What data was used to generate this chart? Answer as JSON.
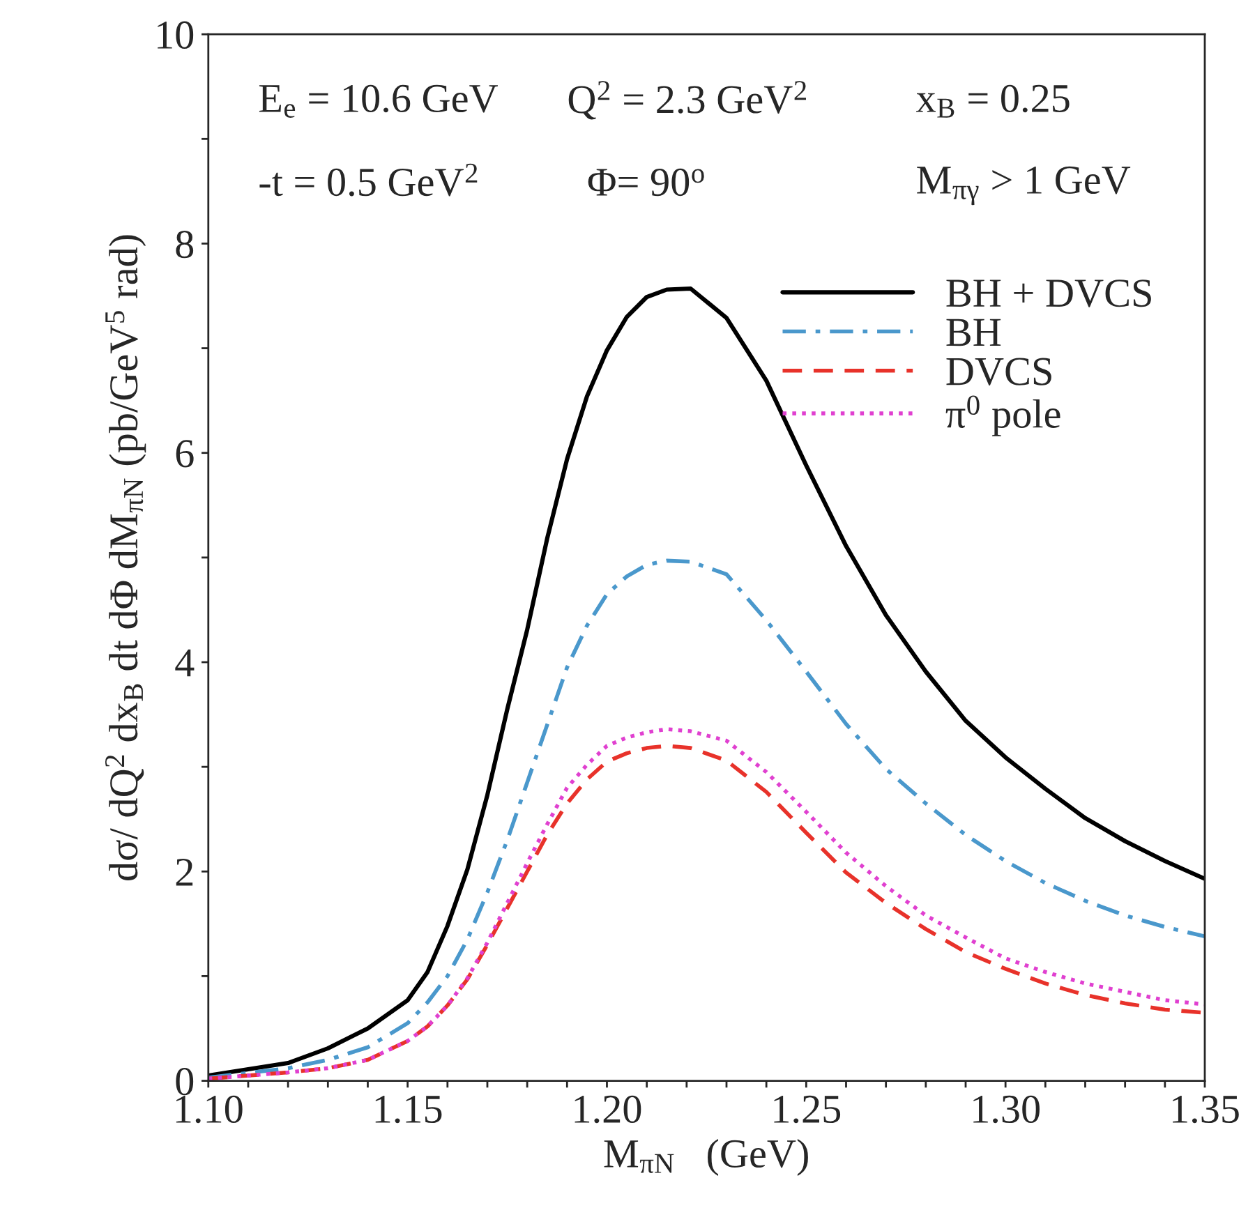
{
  "chart_data": {
    "type": "line",
    "xlabel": "M$_{πN}$   (GeV)",
    "ylabel": "dσ/ dQ$^{2}$ dx$_{B}$ dt dΦ dM$_{πN}$ (pb/GeV$^{5}$ rad)",
    "annotations": [
      "E$_{e}$ = 10.6 GeV",
      "Q$^{2}$ = 2.3 GeV$^{2}$",
      "x$_{B}$ = 0.25",
      "-t = 0.5 GeV$^{2}$",
      "Φ= 90$^{o}$",
      "M$_{πγ}$ > 1 GeV"
    ],
    "x": [
      1.1,
      1.12,
      1.13,
      1.14,
      1.15,
      1.155,
      1.16,
      1.165,
      1.17,
      1.175,
      1.18,
      1.185,
      1.19,
      1.195,
      1.2,
      1.205,
      1.21,
      1.215,
      1.221,
      1.23,
      1.24,
      1.25,
      1.26,
      1.27,
      1.28,
      1.29,
      1.3,
      1.31,
      1.32,
      1.33,
      1.34,
      1.35
    ],
    "series": [
      {
        "name": "BH + DVCS",
        "color": "#000000",
        "line_style": "solid",
        "values": [
          0.05,
          0.17,
          0.31,
          0.5,
          0.77,
          1.04,
          1.48,
          2.02,
          2.73,
          3.55,
          4.31,
          5.18,
          5.94,
          6.54,
          6.98,
          7.3,
          7.49,
          7.56,
          7.57,
          7.29,
          6.69,
          5.88,
          5.11,
          4.45,
          3.91,
          3.44,
          3.09,
          2.79,
          2.51,
          2.29,
          2.1,
          1.93
        ]
      },
      {
        "name": "BH",
        "color": "#4a98cc",
        "line_style": "dashdot",
        "values": [
          0.03,
          0.12,
          0.2,
          0.32,
          0.55,
          0.75,
          1.0,
          1.35,
          1.8,
          2.3,
          2.85,
          3.4,
          3.95,
          4.35,
          4.65,
          4.82,
          4.93,
          4.97,
          4.96,
          4.84,
          4.4,
          3.91,
          3.41,
          2.98,
          2.65,
          2.35,
          2.1,
          1.89,
          1.72,
          1.58,
          1.47,
          1.38
        ]
      },
      {
        "name": "DVCS",
        "color": "#e8322a",
        "line_style": "dashed",
        "values": [
          0.02,
          0.08,
          0.12,
          0.2,
          0.38,
          0.52,
          0.72,
          0.97,
          1.3,
          1.65,
          2.0,
          2.35,
          2.65,
          2.88,
          3.05,
          3.13,
          3.18,
          3.2,
          3.18,
          3.06,
          2.76,
          2.37,
          1.99,
          1.7,
          1.45,
          1.23,
          1.07,
          0.93,
          0.82,
          0.74,
          0.68,
          0.65
        ]
      },
      {
        "name": "π$^{0}$ pole",
        "color": "#e040d0",
        "line_style": "dotted",
        "values": [
          0.02,
          0.08,
          0.12,
          0.2,
          0.38,
          0.52,
          0.72,
          0.98,
          1.32,
          1.7,
          2.08,
          2.45,
          2.8,
          3.02,
          3.2,
          3.28,
          3.33,
          3.36,
          3.34,
          3.25,
          2.95,
          2.57,
          2.18,
          1.86,
          1.58,
          1.37,
          1.17,
          1.04,
          0.93,
          0.85,
          0.77,
          0.73
        ]
      }
    ],
    "xlim": [
      1.1,
      1.35
    ],
    "xticks": [
      {
        "value": 1.1,
        "label": "1.10"
      },
      {
        "value": 1.11,
        "label": null
      },
      {
        "value": 1.12,
        "label": null
      },
      {
        "value": 1.13,
        "label": null
      },
      {
        "value": 1.14,
        "label": null
      },
      {
        "value": 1.15,
        "label": "1.15"
      },
      {
        "value": 1.16,
        "label": null
      },
      {
        "value": 1.17,
        "label": null
      },
      {
        "value": 1.18,
        "label": null
      },
      {
        "value": 1.19,
        "label": null
      },
      {
        "value": 1.2,
        "label": "1.20"
      },
      {
        "value": 1.21,
        "label": null
      },
      {
        "value": 1.22,
        "label": null
      },
      {
        "value": 1.23,
        "label": null
      },
      {
        "value": 1.24,
        "label": null
      },
      {
        "value": 1.25,
        "label": "1.25"
      },
      {
        "value": 1.26,
        "label": null
      },
      {
        "value": 1.27,
        "label": null
      },
      {
        "value": 1.28,
        "label": null
      },
      {
        "value": 1.29,
        "label": null
      },
      {
        "value": 1.3,
        "label": "1.30"
      },
      {
        "value": 1.31,
        "label": null
      },
      {
        "value": 1.32,
        "label": null
      },
      {
        "value": 1.33,
        "label": null
      },
      {
        "value": 1.34,
        "label": null
      },
      {
        "value": 1.35,
        "label": "1.35"
      }
    ],
    "ylim": [
      0,
      10
    ],
    "yticks": [
      0,
      {
        "value": 1,
        "label": null
      },
      2,
      {
        "value": 3,
        "label": null
      },
      4,
      {
        "value": 5,
        "label": null
      },
      6,
      {
        "value": 7,
        "label": null
      },
      8,
      {
        "value": 9,
        "label": null
      },
      10
    ],
    "grid": false,
    "legend": "top right",
    "marker": "none"
  }
}
